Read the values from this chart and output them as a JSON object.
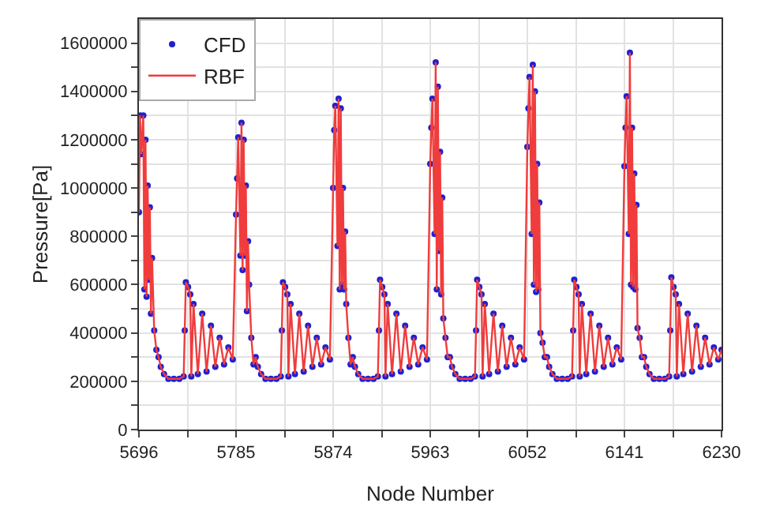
{
  "chart_data": {
    "type": "scatter",
    "xlabel": "Node Number",
    "ylabel": "Pressure[Pa]",
    "x": [
      5696,
      5697,
      5698,
      5700,
      5701,
      5702,
      5703,
      5704,
      5705,
      5706,
      5707,
      5708,
      5710,
      5712,
      5714,
      5716,
      5719,
      5723,
      5728,
      5733,
      5737,
      5738,
      5739,
      5741,
      5743,
      5744,
      5746,
      5750,
      5754,
      5758,
      5762,
      5766,
      5770,
      5774,
      5778,
      5782,
      5785,
      5786,
      5787,
      5789,
      5790,
      5791,
      5792,
      5793,
      5794,
      5795,
      5796,
      5797,
      5799,
      5801,
      5803,
      5805,
      5808,
      5812,
      5817,
      5822,
      5826,
      5827,
      5828,
      5830,
      5832,
      5833,
      5835,
      5839,
      5843,
      5847,
      5851,
      5855,
      5859,
      5863,
      5867,
      5871,
      5874,
      5875,
      5876,
      5878,
      5879,
      5880,
      5881,
      5882,
      5883,
      5884,
      5885,
      5886,
      5888,
      5890,
      5892,
      5894,
      5897,
      5901,
      5906,
      5911,
      5915,
      5916,
      5917,
      5919,
      5921,
      5922,
      5924,
      5928,
      5932,
      5936,
      5940,
      5944,
      5948,
      5952,
      5956,
      5960,
      5963,
      5964,
      5965,
      5967,
      5968,
      5969,
      5970,
      5971,
      5972,
      5973,
      5974,
      5975,
      5977,
      5979,
      5981,
      5983,
      5986,
      5990,
      5995,
      6000,
      6004,
      6005,
      6006,
      6008,
      6010,
      6011,
      6013,
      6017,
      6021,
      6025,
      6029,
      6033,
      6037,
      6041,
      6045,
      6049,
      6052,
      6053,
      6054,
      6056,
      6057,
      6058,
      6059,
      6060,
      6061,
      6062,
      6063,
      6064,
      6066,
      6068,
      6070,
      6072,
      6075,
      6079,
      6084,
      6089,
      6093,
      6094,
      6095,
      6097,
      6099,
      6100,
      6102,
      6106,
      6110,
      6114,
      6118,
      6122,
      6126,
      6130,
      6134,
      6138,
      6141,
      6142,
      6143,
      6145,
      6146,
      6147,
      6148,
      6149,
      6150,
      6151,
      6152,
      6153,
      6155,
      6157,
      6159,
      6161,
      6164,
      6168,
      6173,
      6178,
      6182,
      6183,
      6184,
      6186,
      6188,
      6189,
      6191,
      6195,
      6199,
      6203,
      6207,
      6211,
      6215,
      6219,
      6223,
      6227,
      6230
    ],
    "series": [
      {
        "name": "CFD",
        "marker": "circle",
        "color": "#2020d0",
        "values": [
          900000,
          1300000,
          1140000,
          1300000,
          580000,
          1200000,
          550000,
          1010000,
          620000,
          920000,
          480000,
          710000,
          410000,
          330000,
          300000,
          260000,
          230000,
          210000,
          210000,
          210000,
          220000,
          410000,
          610000,
          590000,
          560000,
          220000,
          520000,
          230000,
          480000,
          240000,
          430000,
          260000,
          380000,
          270000,
          340000,
          290000,
          890000,
          1040000,
          1210000,
          720000,
          1270000,
          660000,
          1200000,
          720000,
          1010000,
          490000,
          780000,
          600000,
          380000,
          270000,
          300000,
          260000,
          230000,
          210000,
          210000,
          210000,
          220000,
          410000,
          610000,
          590000,
          560000,
          220000,
          520000,
          230000,
          480000,
          240000,
          430000,
          260000,
          380000,
          270000,
          340000,
          290000,
          1000000,
          1240000,
          1340000,
          760000,
          1370000,
          580000,
          1330000,
          600000,
          1000000,
          580000,
          820000,
          520000,
          380000,
          270000,
          300000,
          260000,
          230000,
          210000,
          210000,
          210000,
          220000,
          410000,
          620000,
          590000,
          560000,
          220000,
          520000,
          230000,
          480000,
          240000,
          430000,
          260000,
          380000,
          270000,
          340000,
          290000,
          1100000,
          1250000,
          1370000,
          810000,
          1520000,
          580000,
          1420000,
          740000,
          1150000,
          560000,
          960000,
          460000,
          380000,
          300000,
          300000,
          260000,
          230000,
          210000,
          210000,
          210000,
          220000,
          410000,
          620000,
          590000,
          560000,
          220000,
          520000,
          230000,
          480000,
          240000,
          430000,
          260000,
          380000,
          270000,
          340000,
          290000,
          1170000,
          1330000,
          1460000,
          810000,
          1510000,
          600000,
          1400000,
          570000,
          1100000,
          580000,
          940000,
          400000,
          360000,
          300000,
          300000,
          260000,
          230000,
          210000,
          210000,
          210000,
          220000,
          410000,
          620000,
          590000,
          560000,
          220000,
          520000,
          230000,
          480000,
          240000,
          430000,
          260000,
          380000,
          270000,
          340000,
          290000,
          1090000,
          1250000,
          1380000,
          810000,
          1560000,
          600000,
          1250000,
          590000,
          1060000,
          580000,
          930000,
          420000,
          380000,
          300000,
          300000,
          260000,
          230000,
          210000,
          210000,
          210000,
          220000,
          410000,
          630000,
          590000,
          560000,
          220000,
          520000,
          230000,
          480000,
          240000,
          430000,
          260000,
          380000,
          270000,
          340000,
          290000,
          330000
        ]
      },
      {
        "name": "RBF",
        "type": "line",
        "color": "#f03c3c",
        "values": [
          900000,
          1300000,
          1140000,
          1300000,
          580000,
          1200000,
          550000,
          1010000,
          620000,
          920000,
          480000,
          710000,
          410000,
          330000,
          300000,
          260000,
          230000,
          210000,
          210000,
          210000,
          220000,
          410000,
          610000,
          590000,
          560000,
          220000,
          520000,
          230000,
          480000,
          240000,
          430000,
          260000,
          380000,
          270000,
          340000,
          290000,
          890000,
          1040000,
          1210000,
          720000,
          1270000,
          660000,
          1200000,
          720000,
          1010000,
          490000,
          780000,
          600000,
          380000,
          270000,
          300000,
          260000,
          230000,
          210000,
          210000,
          210000,
          220000,
          410000,
          610000,
          590000,
          560000,
          220000,
          520000,
          230000,
          480000,
          240000,
          430000,
          260000,
          380000,
          270000,
          340000,
          290000,
          1000000,
          1240000,
          1340000,
          760000,
          1370000,
          580000,
          1330000,
          600000,
          1000000,
          580000,
          820000,
          520000,
          380000,
          270000,
          300000,
          260000,
          230000,
          210000,
          210000,
          210000,
          220000,
          410000,
          620000,
          590000,
          560000,
          220000,
          520000,
          230000,
          480000,
          240000,
          430000,
          260000,
          380000,
          270000,
          340000,
          290000,
          1100000,
          1250000,
          1370000,
          810000,
          1520000,
          580000,
          1420000,
          740000,
          1150000,
          560000,
          960000,
          460000,
          380000,
          300000,
          300000,
          260000,
          230000,
          210000,
          210000,
          210000,
          220000,
          410000,
          620000,
          590000,
          560000,
          220000,
          520000,
          230000,
          480000,
          240000,
          430000,
          260000,
          380000,
          270000,
          340000,
          290000,
          1170000,
          1330000,
          1460000,
          810000,
          1510000,
          600000,
          1400000,
          570000,
          1100000,
          580000,
          940000,
          400000,
          360000,
          300000,
          300000,
          260000,
          230000,
          210000,
          210000,
          210000,
          220000,
          410000,
          620000,
          590000,
          560000,
          220000,
          520000,
          230000,
          480000,
          240000,
          430000,
          260000,
          380000,
          270000,
          340000,
          290000,
          1090000,
          1250000,
          1380000,
          810000,
          1560000,
          600000,
          1250000,
          590000,
          1060000,
          580000,
          930000,
          420000,
          380000,
          300000,
          300000,
          260000,
          230000,
          210000,
          210000,
          210000,
          220000,
          410000,
          630000,
          590000,
          560000,
          220000,
          520000,
          230000,
          480000,
          240000,
          430000,
          260000,
          380000,
          270000,
          340000,
          290000,
          330000
        ]
      }
    ],
    "xlim": [
      5696,
      6230
    ],
    "xticks": [
      5696,
      {
        "value": 5740.5,
        "label": null
      },
      5785,
      {
        "value": 5829.5,
        "label": null
      },
      5874,
      {
        "value": 5918.5,
        "label": null
      },
      5963,
      {
        "value": 6007.5,
        "label": null
      },
      6052,
      {
        "value": 6096.5,
        "label": null
      },
      6141,
      {
        "value": 6185.5,
        "label": null
      },
      6230
    ],
    "ylim": [
      0,
      1700000
    ],
    "yticks": [
      0,
      {
        "value": 100000,
        "label": null
      },
      200000,
      {
        "value": 300000,
        "label": null
      },
      400000,
      {
        "value": 500000,
        "label": null
      },
      600000,
      {
        "value": 700000,
        "label": null
      },
      800000,
      {
        "value": 900000,
        "label": null
      },
      1000000,
      {
        "value": 1100000,
        "label": null
      },
      1200000,
      {
        "value": 1300000,
        "label": null
      },
      1400000,
      {
        "value": 1500000,
        "label": null
      },
      1600000
    ],
    "grid": true,
    "legend": "top left",
    "line_style": "solid"
  }
}
